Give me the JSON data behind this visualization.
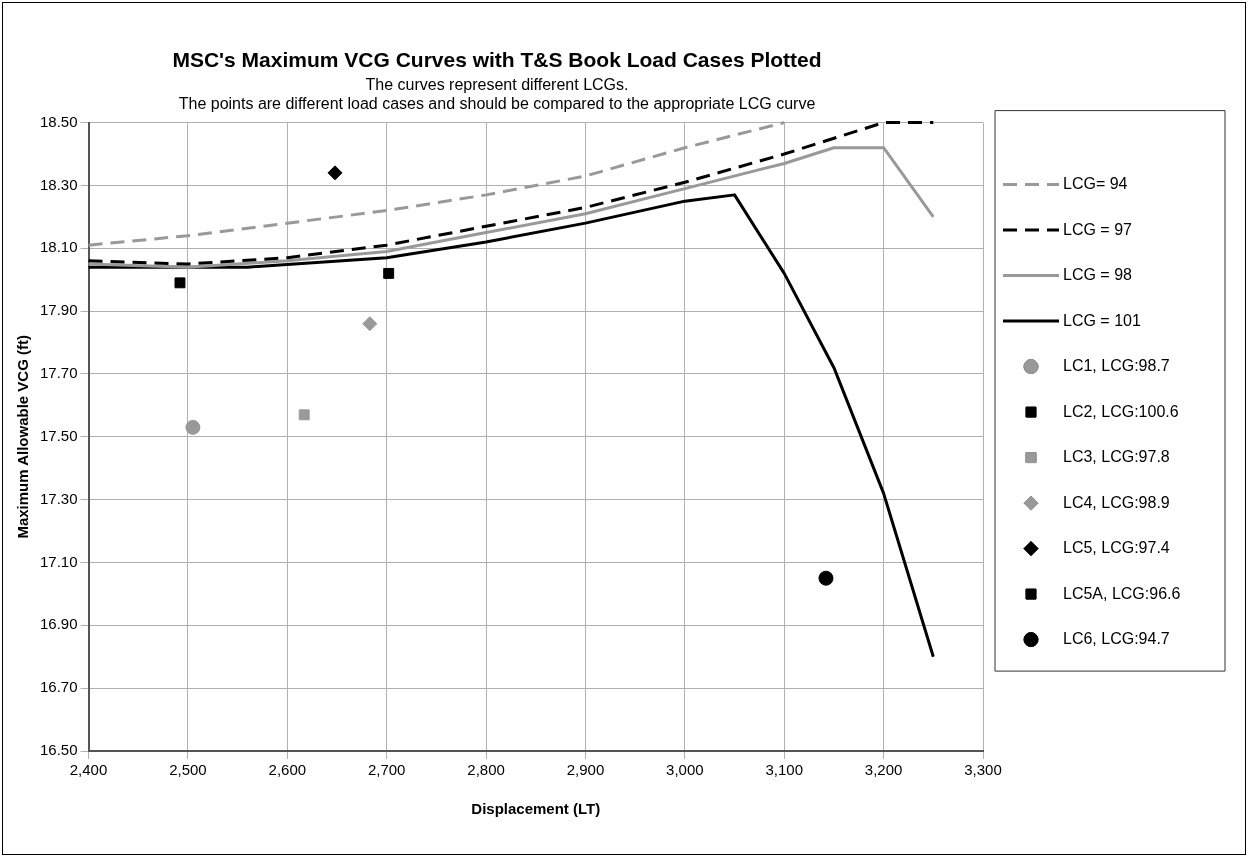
{
  "chart_data": {
    "type": "line",
    "title": "MSC's Maximum VCG Curves with T&S Book Load Cases Plotted",
    "subtitle": "The curves represent different LCGs.\nThe points are different load cases and should be compared to the appropriate LCG curve",
    "xlabel": "Displacement (LT)",
    "ylabel": "Maximum Allowable VCG (ft)",
    "xlim": [
      2400,
      3300
    ],
    "xticks": [
      {
        "value": 2400,
        "label": "2,400"
      },
      {
        "value": 2500,
        "label": "2,500"
      },
      {
        "value": 2600,
        "label": "2,600"
      },
      {
        "value": 2700,
        "label": "2,700"
      },
      {
        "value": 2800,
        "label": "2,800"
      },
      {
        "value": 2900,
        "label": "2,900"
      },
      {
        "value": 3000,
        "label": "3,000"
      },
      {
        "value": 3100,
        "label": "3,100"
      },
      {
        "value": 3200,
        "label": "3,200"
      },
      {
        "value": 3300,
        "label": "3,300"
      }
    ],
    "ylim": [
      16.5,
      18.5
    ],
    "yticks": [
      {
        "value": 16.5,
        "label": "16.50"
      },
      {
        "value": 16.7,
        "label": "16.70"
      },
      {
        "value": 16.9,
        "label": "16.90"
      },
      {
        "value": 17.1,
        "label": "17.10"
      },
      {
        "value": 17.3,
        "label": "17.30"
      },
      {
        "value": 17.5,
        "label": "17.50"
      },
      {
        "value": 17.7,
        "label": "17.70"
      },
      {
        "value": 17.9,
        "label": "17.90"
      },
      {
        "value": 18.1,
        "label": "18.10"
      },
      {
        "value": 18.3,
        "label": "18.30"
      },
      {
        "value": 18.5,
        "label": "18.50"
      }
    ],
    "grid": true,
    "legend": "right",
    "series": [
      {
        "name": "LCG= 94",
        "type": "line",
        "line_style": "dashed",
        "marker": "none",
        "color": "#999999",
        "x": [
          2400,
          2500,
          2600,
          2700,
          2800,
          2900,
          3000,
          3100
        ],
        "values": [
          18.11,
          18.14,
          18.18,
          18.22,
          18.27,
          18.33,
          18.42,
          18.5
        ]
      },
      {
        "name": "LCG = 97",
        "type": "line",
        "line_style": "dashed",
        "marker": "none",
        "color": "#000000",
        "x": [
          2400,
          2500,
          2600,
          2700,
          2800,
          2900,
          3000,
          3100,
          3200,
          3250
        ],
        "values": [
          18.06,
          18.05,
          18.07,
          18.11,
          18.17,
          18.23,
          18.31,
          18.4,
          18.5,
          18.5
        ]
      },
      {
        "name": "LCG = 98",
        "type": "line",
        "line_style": "solid",
        "marker": "none",
        "color": "#999999",
        "x": [
          2400,
          2500,
          2600,
          2700,
          2800,
          2900,
          3000,
          3100,
          3150,
          3200,
          3250
        ],
        "values": [
          18.05,
          18.04,
          18.06,
          18.09,
          18.15,
          18.21,
          18.29,
          18.37,
          18.42,
          18.42,
          18.2
        ]
      },
      {
        "name": "LCG = 101",
        "type": "line",
        "line_style": "solid",
        "marker": "none",
        "color": "#000000",
        "x": [
          2400,
          2500,
          2560,
          2700,
          2800,
          2900,
          3000,
          3050,
          3100,
          3150,
          3200,
          3250
        ],
        "values": [
          18.04,
          18.04,
          18.04,
          18.07,
          18.12,
          18.18,
          18.25,
          18.27,
          18.02,
          17.72,
          17.32,
          16.8
        ]
      },
      {
        "name": "LC1, LCG:98.7",
        "type": "scatter",
        "marker": "circle",
        "color": "#999999",
        "x": [
          2505
        ],
        "values": [
          17.53
        ]
      },
      {
        "name": "LC2, LCG:100.6",
        "type": "scatter",
        "marker": "square",
        "color": "#000000",
        "x": [
          2492
        ],
        "values": [
          17.99
        ]
      },
      {
        "name": "LC3, LCG:97.8",
        "type": "scatter",
        "marker": "square",
        "color": "#999999",
        "x": [
          2617
        ],
        "values": [
          17.57
        ]
      },
      {
        "name": "LC4, LCG:98.9",
        "type": "scatter",
        "marker": "diamond",
        "color": "#999999",
        "x": [
          2683
        ],
        "values": [
          17.86
        ]
      },
      {
        "name": "LC5, LCG:97.4",
        "type": "scatter",
        "marker": "diamond",
        "color": "#000000",
        "x": [
          2648
        ],
        "values": [
          18.34
        ]
      },
      {
        "name": "LC5A, LCG:96.6",
        "type": "scatter",
        "marker": "square",
        "color": "#000000",
        "x": [
          2702
        ],
        "values": [
          18.02
        ]
      },
      {
        "name": "LC6, LCG:94.7",
        "type": "scatter",
        "marker": "circle",
        "color": "#000000",
        "x": [
          3142
        ],
        "values": [
          17.05
        ]
      }
    ]
  }
}
